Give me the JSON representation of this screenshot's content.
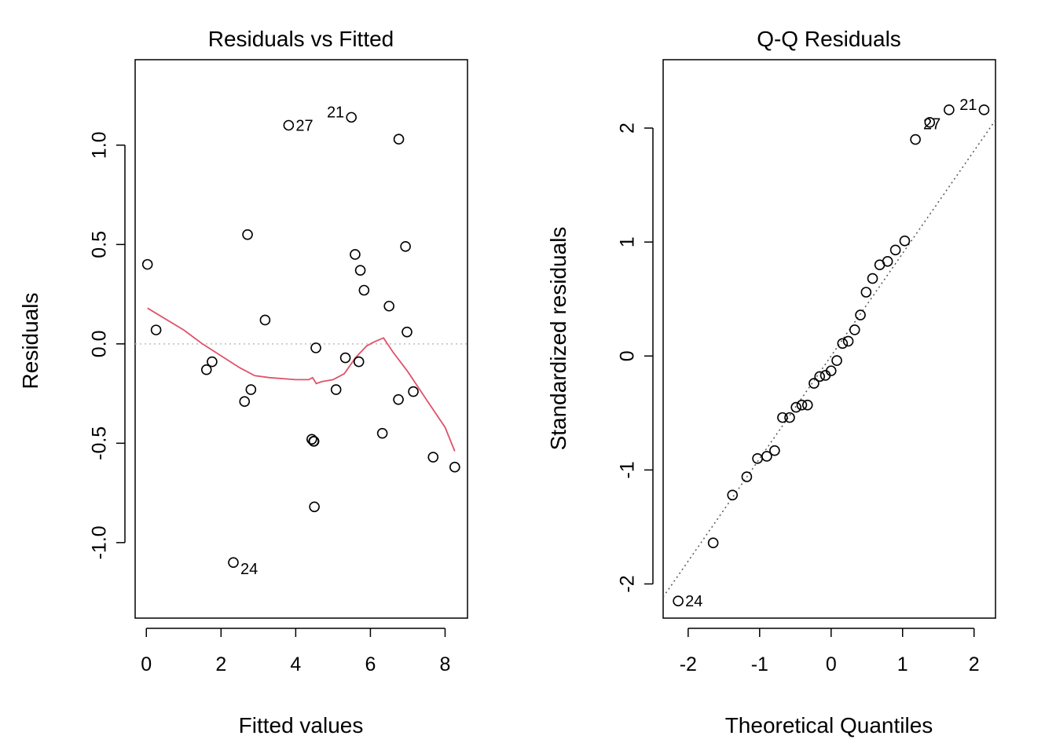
{
  "colors": {
    "ink": "#000000",
    "smoother": "#DF536B",
    "reference": "#BEBEBE",
    "qqline": "#555555"
  },
  "chart_data": [
    {
      "type": "scatter",
      "title": "Residuals vs Fitted",
      "xlabel": "Fitted values",
      "ylabel": "Residuals",
      "xlim": [
        -0.3,
        8.6
      ],
      "ylim": [
        -1.38,
        1.43
      ],
      "xticks": [
        0,
        2,
        4,
        6,
        8
      ],
      "xtick_labels": [
        "0",
        "2",
        "4",
        "6",
        "8"
      ],
      "yticks": [
        -1.0,
        -0.5,
        0.0,
        0.5,
        1.0
      ],
      "ytick_labels": [
        "-1.0",
        "-0.5",
        "0.0",
        "0.5",
        "1.0"
      ],
      "reference_line": 0,
      "x": [
        0.03,
        0.26,
        1.61,
        1.76,
        2.33,
        2.63,
        2.71,
        2.8,
        3.18,
        3.81,
        4.43,
        4.48,
        4.49,
        4.5,
        4.54,
        5.08,
        5.33,
        5.49,
        5.59,
        5.69,
        5.73,
        5.83,
        6.32,
        6.5,
        6.75,
        6.76,
        6.94,
        6.98,
        7.15,
        7.68,
        8.26
      ],
      "y": [
        0.4,
        0.07,
        -0.13,
        -0.09,
        -1.1,
        -0.29,
        0.55,
        -0.23,
        0.12,
        1.1,
        -0.48,
        -0.49,
        -0.49,
        -0.82,
        -0.02,
        -0.23,
        -0.07,
        1.14,
        0.45,
        -0.09,
        0.37,
        0.27,
        -0.45,
        0.19,
        -0.28,
        1.03,
        0.49,
        0.06,
        -0.24,
        -0.57,
        -0.62
      ],
      "point_labels": [
        {
          "text": "27",
          "x": 3.81,
          "y": 1.1,
          "side": "right"
        },
        {
          "text": "21",
          "x": 5.49,
          "y": 1.14,
          "side": "left"
        },
        {
          "text": "24",
          "x": 2.33,
          "y": -1.1,
          "side": "below-right"
        }
      ],
      "smoother": {
        "x": [
          0.03,
          1.0,
          1.5,
          2.0,
          2.5,
          2.9,
          3.3,
          4.0,
          4.35,
          4.45,
          4.55,
          4.7,
          5.0,
          5.3,
          5.6,
          5.9,
          6.1,
          6.35,
          6.6,
          7.0,
          7.5,
          8.0,
          8.26
        ],
        "y": [
          0.18,
          0.07,
          0.0,
          -0.06,
          -0.12,
          -0.16,
          -0.17,
          -0.18,
          -0.18,
          -0.17,
          -0.2,
          -0.19,
          -0.18,
          -0.15,
          -0.07,
          -0.01,
          0.01,
          0.03,
          -0.04,
          -0.14,
          -0.28,
          -0.42,
          -0.54
        ]
      }
    },
    {
      "type": "scatter",
      "title": "Q-Q Residuals",
      "xlabel": "Theoretical Quantiles",
      "ylabel": "Standardized residuals",
      "xlim": [
        -2.35,
        2.3
      ],
      "ylim": [
        -2.3,
        2.6
      ],
      "xticks": [
        -2,
        -1,
        0,
        1,
        2
      ],
      "xtick_labels": [
        "-2",
        "-1",
        "0",
        "1",
        "2"
      ],
      "yticks": [
        -2,
        -1,
        0,
        1,
        2
      ],
      "ytick_labels": [
        "-2",
        "-1",
        "0",
        "1",
        "2"
      ],
      "qq_line": {
        "intercept": 0.0,
        "slope": 0.9
      },
      "x": [
        -2.14,
        -1.65,
        -1.38,
        -1.18,
        -1.03,
        -0.9,
        -0.79,
        -0.68,
        -0.58,
        -0.49,
        -0.41,
        -0.33,
        -0.24,
        -0.16,
        -0.08,
        0.0,
        0.08,
        0.16,
        0.24,
        0.33,
        0.41,
        0.49,
        0.58,
        0.68,
        0.79,
        0.9,
        1.03,
        1.18,
        1.38,
        1.65,
        2.14
      ],
      "y": [
        -2.15,
        -1.64,
        -1.22,
        -1.06,
        -0.9,
        -0.88,
        -0.83,
        -0.54,
        -0.54,
        -0.45,
        -0.43,
        -0.43,
        -0.24,
        -0.18,
        -0.17,
        -0.13,
        -0.04,
        0.11,
        0.13,
        0.23,
        0.36,
        0.56,
        0.68,
        0.8,
        0.83,
        0.93,
        1.01,
        1.9,
        2.05,
        2.16,
        2.16
      ],
      "point_labels": [
        {
          "text": "27",
          "x": 1.38,
          "y": 1.9,
          "side": "above-left"
        },
        {
          "text": "21",
          "x": 2.14,
          "y": 2.16,
          "side": "left"
        },
        {
          "text": "24",
          "x": -2.14,
          "y": -2.15,
          "side": "right"
        }
      ]
    }
  ]
}
